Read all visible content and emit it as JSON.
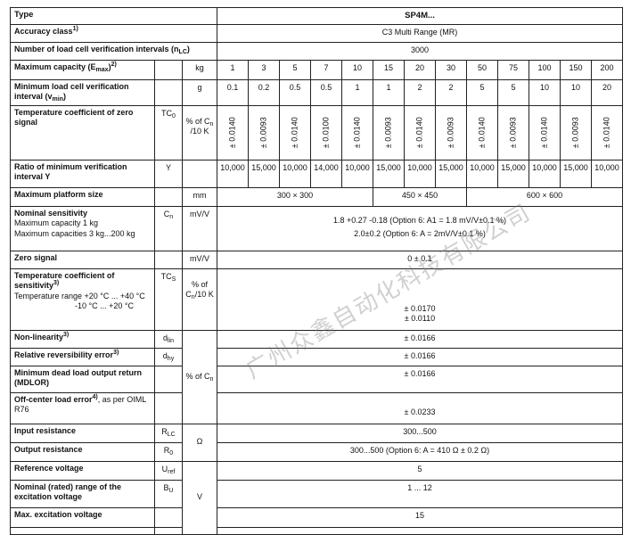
{
  "header": {
    "label": "Type",
    "value": "SP4M..."
  },
  "watermark": "广州众鑫自动化科技有限公司",
  "rows": [
    {
      "id": "accuracy-class",
      "label": [
        {
          "t": "Accuracy class"
        },
        {
          "sup": "1)"
        }
      ],
      "span_label": true,
      "value": [
        "C3 Multi Range (MR)"
      ]
    },
    {
      "id": "verification-intervals",
      "label": [
        {
          "t": "Number of load cell verification intervals (n"
        },
        {
          "sub": "LC"
        },
        {
          "t": ")"
        }
      ],
      "span_label": true,
      "value": [
        "3000"
      ]
    },
    {
      "id": "maximum-capacity",
      "label": [
        {
          "t": "Maximum capacity (E"
        },
        {
          "sub": "max"
        },
        {
          "t": ")"
        },
        {
          "sup": "2)"
        }
      ],
      "symbol": [],
      "unit": "kg",
      "values": [
        "1",
        "3",
        "5",
        "7",
        "10",
        "15",
        "20",
        "30",
        "50",
        "75",
        "100",
        "150",
        "200"
      ]
    },
    {
      "id": "min-verification-interval",
      "label": [
        {
          "t": "Minimum load cell verification interval (v"
        },
        {
          "sub": "min"
        },
        {
          "t": ")"
        }
      ],
      "symbol": [],
      "unit": "g",
      "values": [
        "0.1",
        "0.2",
        "0.5",
        "0.5",
        "1",
        "1",
        "2",
        "2",
        "5",
        "5",
        "10",
        "10",
        "20"
      ]
    },
    {
      "id": "tc-zero-signal",
      "label": [
        {
          "t": "Temperature coefficient of zero signal"
        }
      ],
      "symbol": [
        {
          "t": "TC"
        },
        {
          "sub": "0"
        }
      ],
      "unit_parts": [
        {
          "t": "% of C"
        },
        {
          "sub": "n"
        },
        {
          "t": " /10 K"
        }
      ],
      "rotated": true,
      "values": [
        "± 0.0140",
        "± 0.0093",
        "± 0.0140",
        "± 0.0100",
        "± 0.0140",
        "± 0.0093",
        "± 0.0140",
        "± 0.0093",
        "± 0.0140",
        "± 0.0093",
        "± 0.0140",
        "± 0.0093",
        "± 0.0140"
      ]
    },
    {
      "id": "ratio-verification-interval",
      "label": [
        {
          "t": "Ratio of minimum verification interval Y"
        }
      ],
      "symbol": [
        {
          "t": "Y"
        }
      ],
      "unit": "",
      "values": [
        "10,000",
        "15,000",
        "10,000",
        "14,000",
        "10,000",
        "15,000",
        "10,000",
        "15,000",
        "10,000",
        "15,000",
        "10,000",
        "15,000",
        "10,000"
      ]
    },
    {
      "id": "max-platform-size",
      "label": [
        {
          "t": "Maximum platform size"
        }
      ],
      "symbol": [],
      "unit": "mm",
      "groups": [
        {
          "text": "300 × 300",
          "span": 5
        },
        {
          "text": "450 × 450",
          "span": 3
        },
        {
          "text": "600 × 600",
          "span": 5
        }
      ]
    },
    {
      "id": "nominal-sensitivity",
      "label": [
        {
          "t": "Nominal sensitivity"
        }
      ],
      "sublines": [
        "Maximum capacity 1 kg",
        "Maximum capacities 3 kg...200 kg"
      ],
      "symbol": [
        {
          "t": "C"
        },
        {
          "sub": "n"
        }
      ],
      "unit": "mV/V",
      "value": [
        "1.8 +0.27 -0.18 (Option 6: A1 = 1.8 mV/V±0.1 %)",
        "2.0±0.2 (Option 6: A = 2mV/V±0.1 %)"
      ],
      "value_pad": "top"
    },
    {
      "id": "zero-signal",
      "label": [
        {
          "t": "Zero signal"
        }
      ],
      "symbol": [],
      "unit": "mV/V",
      "value": [
        "0 ± 0.1"
      ]
    },
    {
      "id": "tc-sensitivity",
      "label": [
        {
          "t": "Temperature coefficient of sensitivity"
        },
        {
          "sup": "3)"
        }
      ],
      "sublines": [
        "Temperature range +20 °C ... +40 °C"
      ],
      "indent_lines": [
        "-10 °C ... +20 °C"
      ],
      "symbol": [
        {
          "t": "TC"
        },
        {
          "sub": "S"
        }
      ],
      "unit_parts": [
        {
          "t": "% of C"
        },
        {
          "sub": "n"
        },
        {
          "t": "/10 K"
        }
      ],
      "value": [
        "± 0.0170",
        "± 0.0110"
      ],
      "value_pad": "bottom"
    },
    {
      "id": "non-linearity",
      "label": [
        {
          "t": "Non-linearity"
        },
        {
          "sup": "3)"
        }
      ],
      "symbol": [
        {
          "t": "d"
        },
        {
          "sub": "lin"
        }
      ],
      "unit_parts": [
        {
          "t": "% of C"
        },
        {
          "sub": "n"
        }
      ],
      "unit_rowspan": 4,
      "value": [
        "± 0.0166"
      ]
    },
    {
      "id": "reversibility-error",
      "label": [
        {
          "t": "Relative reversibility error"
        },
        {
          "sup": "3)"
        }
      ],
      "symbol": [
        {
          "t": "d"
        },
        {
          "sub": "hy"
        }
      ],
      "unit_skip": true,
      "value": [
        "± 0.0166"
      ]
    },
    {
      "id": "mdlor",
      "label": [
        {
          "t": "Minimum dead load output return (MDLOR)"
        }
      ],
      "symbol": [],
      "unit_skip": true,
      "value": [
        "± 0.0166"
      ]
    },
    {
      "id": "off-center-load-error",
      "label": [
        {
          "t": "Off-center load error"
        },
        {
          "sup": "4)"
        }
      ],
      "label_normal": ", as per OIML R76",
      "symbol": [],
      "unit_skip": true,
      "value": [
        "± 0.0233"
      ],
      "value_pad": "bottom"
    },
    {
      "id": "input-resistance",
      "label": [
        {
          "t": "Input resistance"
        }
      ],
      "symbol": [
        {
          "t": "R"
        },
        {
          "sub": "LC"
        }
      ],
      "unit": "Ω",
      "unit_rowspan": 2,
      "value": [
        "300...500"
      ]
    },
    {
      "id": "output-resistance",
      "label": [
        {
          "t": "Output resistance"
        }
      ],
      "symbol": [
        {
          "t": "R"
        },
        {
          "sub": "0"
        }
      ],
      "unit_skip": true,
      "value": [
        "300...500 (Option 6: A = 410 Ω ± 0.2 Ω)"
      ]
    },
    {
      "id": "reference-voltage",
      "label": [
        {
          "t": "Reference voltage"
        }
      ],
      "symbol": [
        {
          "t": "U"
        },
        {
          "sub": "ref"
        }
      ],
      "unit": "V",
      "unit_rowspan": 4,
      "value": [
        "5"
      ]
    },
    {
      "id": "excitation-voltage-range",
      "label": [
        {
          "t": "Nominal (rated) range of the excitation voltage"
        }
      ],
      "symbol": [
        {
          "t": "B"
        },
        {
          "sub": "U"
        }
      ],
      "unit_skip": true,
      "value": [
        "1 ... 12"
      ]
    },
    {
      "id": "max-excitation-voltage",
      "label": [
        {
          "t": "Max. excitation voltage"
        }
      ],
      "symbol": [],
      "unit_skip": true,
      "value": [
        "15"
      ]
    },
    {
      "id": "next-row",
      "label": [],
      "symbol": [],
      "unit_skip": true,
      "value": []
    }
  ]
}
